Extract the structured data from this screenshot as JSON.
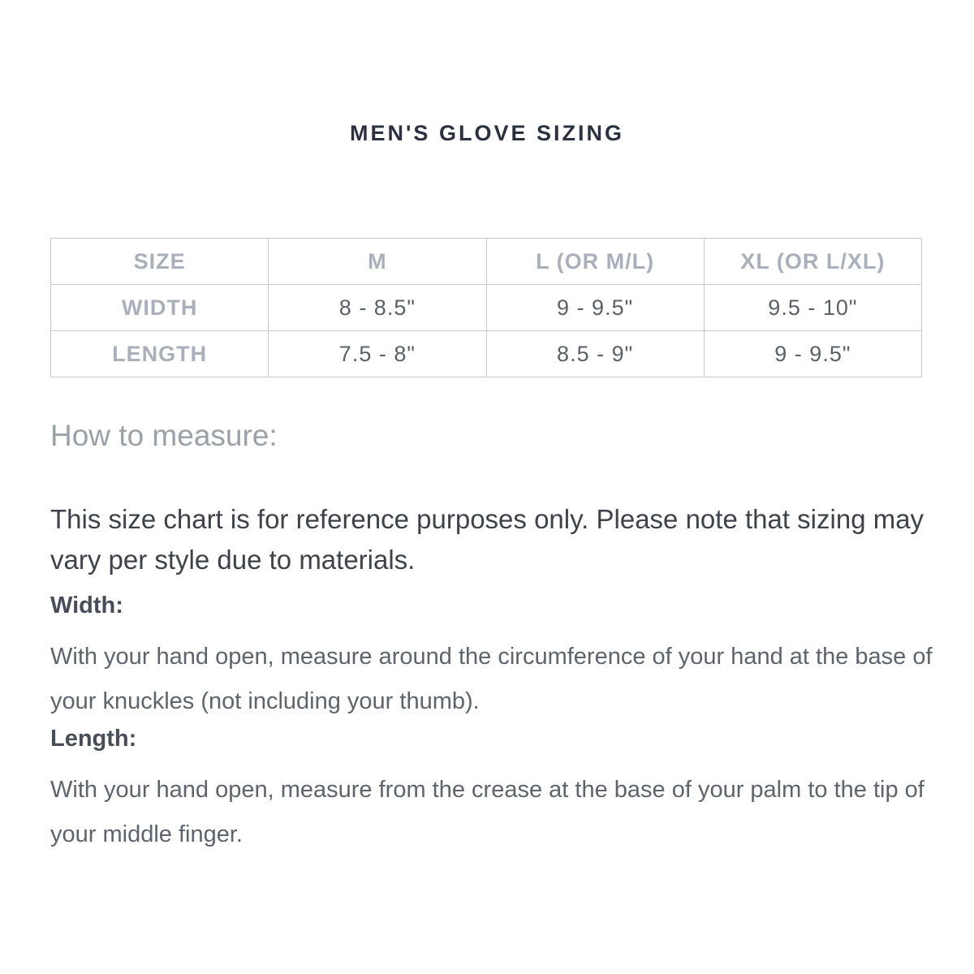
{
  "title": "MEN'S GLOVE SIZING",
  "size_table": {
    "header": [
      "SIZE",
      "M",
      "L (OR M/L)",
      "XL (OR L/XL)"
    ],
    "rows": [
      {
        "label": "WIDTH",
        "values": [
          "8 - 8.5\"",
          "9 - 9.5\"",
          "9.5 - 10\""
        ]
      },
      {
        "label": "LENGTH",
        "values": [
          "7.5 - 8\"",
          "8.5 - 9\"",
          "9 - 9.5\""
        ]
      }
    ]
  },
  "how_to_measure": {
    "heading": "How to measure:",
    "note": "This size chart is for reference purposes only. Please note that sizing may vary per style due to materials.",
    "width_label": "Width:",
    "width_text": "With your hand open, measure around the circumference of your hand at the base of your knuckles (not including your thumb).",
    "length_label": "Length:",
    "length_text": "With your hand open, measure from the crease at the base of your palm to the tip of your middle finger."
  },
  "colors": {
    "background": "#ffffff",
    "title": "#2b3140",
    "border": "#c6c8ca",
    "muted": "#a9b0bb",
    "value": "#5b6169",
    "heading": "#9aa1a9",
    "note": "#3d424b",
    "label": "#484e59",
    "paragraph": "#5d646e"
  }
}
